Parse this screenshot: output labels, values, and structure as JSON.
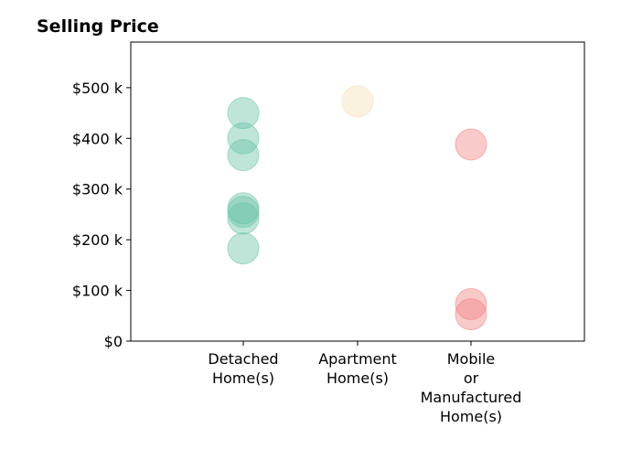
{
  "chart_data": {
    "type": "scatter",
    "title": "Selling Price",
    "xlabel": "",
    "ylabel": "",
    "ylim": [
      0,
      590000
    ],
    "grid": false,
    "categories": [
      [
        "Detached",
        "Home(s)"
      ],
      [
        "Apartment",
        "Home(s)"
      ],
      [
        "Mobile",
        "or",
        "Manufactured",
        "Home(s)"
      ]
    ],
    "y_ticks": [
      {
        "value": 0,
        "label": "$0"
      },
      {
        "value": 100000,
        "label": "$100 k"
      },
      {
        "value": 200000,
        "label": "$200 k"
      },
      {
        "value": 300000,
        "label": "$300 k"
      },
      {
        "value": 400000,
        "label": "$400 k"
      },
      {
        "value": 500000,
        "label": "$500 k"
      }
    ],
    "series": [
      {
        "category_index": 0,
        "color": "#66c2a5",
        "values": [
          450000,
          400000,
          367000,
          262000,
          255000,
          242000,
          183000
        ]
      },
      {
        "category_index": 1,
        "color": "#f5deb3",
        "values": [
          473000
        ]
      },
      {
        "category_index": 2,
        "color": "#f08080",
        "values": [
          388000,
          73000,
          53000
        ]
      }
    ]
  }
}
